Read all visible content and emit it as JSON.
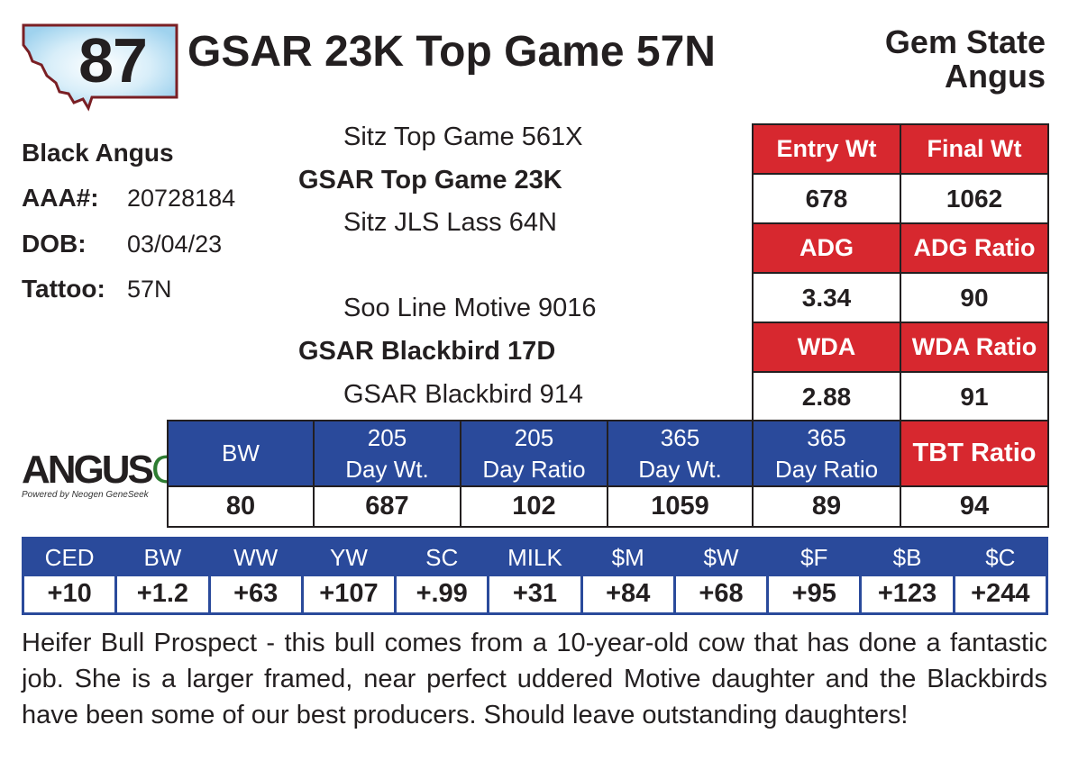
{
  "header": {
    "lot_number": "87",
    "animal_name": "GSAR 23K Top Game 57N",
    "consignor_line1": "Gem State",
    "consignor_line2": "Angus"
  },
  "identity": {
    "breed": "Black Angus",
    "aaa_label": "AAA#:",
    "aaa_value": "20728184",
    "dob_label": "DOB:",
    "dob_value": "03/04/23",
    "tattoo_label": "Tattoo:",
    "tattoo_value": "57N"
  },
  "pedigree": {
    "sire_sire": "Sitz Top Game 561X",
    "sire": "GSAR Top Game 23K",
    "sire_dam": "Sitz JLS Lass 64N",
    "dam_sire": "Soo Line Motive 9016",
    "dam": "GSAR Blackbird 17D",
    "dam_dam": "GSAR Blackbird 914"
  },
  "gain_table": {
    "rows": [
      {
        "h1": "Entry Wt",
        "h2": "Final Wt",
        "v1": "678",
        "v2": "1062"
      },
      {
        "h1": "ADG",
        "h2": "ADG Ratio",
        "v1": "3.34",
        "v2": "90"
      },
      {
        "h1": "WDA",
        "h2": "WDA Ratio",
        "v1": "2.88",
        "v2": "91"
      }
    ]
  },
  "weight_table": {
    "headers": [
      {
        "l1": "BW",
        "l2": ""
      },
      {
        "l1": "205",
        "l2": "Day Wt."
      },
      {
        "l1": "205",
        "l2": "Day Ratio"
      },
      {
        "l1": "365",
        "l2": "Day Wt."
      },
      {
        "l1": "365",
        "l2": "Day Ratio"
      },
      {
        "l1": "TBT Ratio",
        "l2": ""
      }
    ],
    "values": [
      "80",
      "687",
      "102",
      "1059",
      "89",
      "94"
    ]
  },
  "epd_table": {
    "headers": [
      "CED",
      "BW",
      "WW",
      "YW",
      "SC",
      "MILK",
      "$M",
      "$W",
      "$F",
      "$B",
      "$C"
    ],
    "values": [
      "+10",
      "+1.2",
      "+63",
      "+107",
      "+.99",
      "+31",
      "+84",
      "+68",
      "+95",
      "+123",
      "+244"
    ]
  },
  "logo": {
    "main": "ANGUS",
    "suffix": "GS",
    "tagline": "Powered by Neogen GeneSeek"
  },
  "description": "Heifer Bull Prospect - this bull comes from a 10-year-old cow that has done a fantastic job. She is a larger framed, near perfect uddered Motive daughter and the Blackbirds have been some of our best producers. Should leave outstanding daughters!",
  "colors": {
    "red": "#d7282f",
    "blue": "#2a4a9b",
    "badge_border": "#7a1f24",
    "badge_glow": "#a8d8f0"
  }
}
